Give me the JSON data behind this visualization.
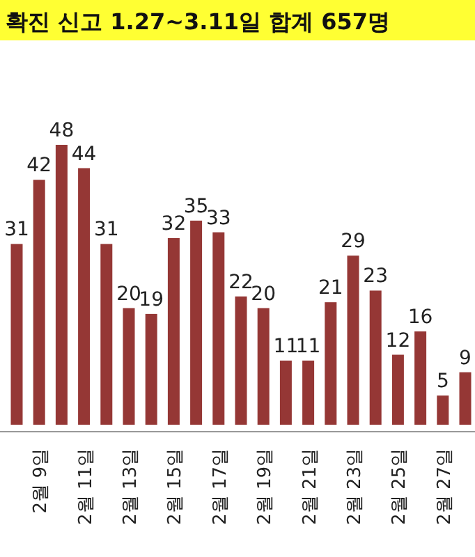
{
  "chart_data": {
    "type": "bar",
    "title": "확진 신고 1.27~3.11일 합계 657명",
    "categories": [
      null,
      "2월 9일",
      null,
      "2월 11일",
      null,
      "2월 13일",
      null,
      "2월 15일",
      null,
      "2월 17일",
      null,
      "2월 19일",
      null,
      "2월 21일",
      null,
      "2월 23일",
      null,
      "2월 25일",
      null,
      "2월 27일",
      null
    ],
    "values": [
      31,
      42,
      48,
      44,
      31,
      20,
      19,
      32,
      35,
      33,
      22,
      20,
      11,
      11,
      21,
      29,
      23,
      12,
      16,
      5,
      9
    ],
    "color": "#953735",
    "data_labels": true
  }
}
